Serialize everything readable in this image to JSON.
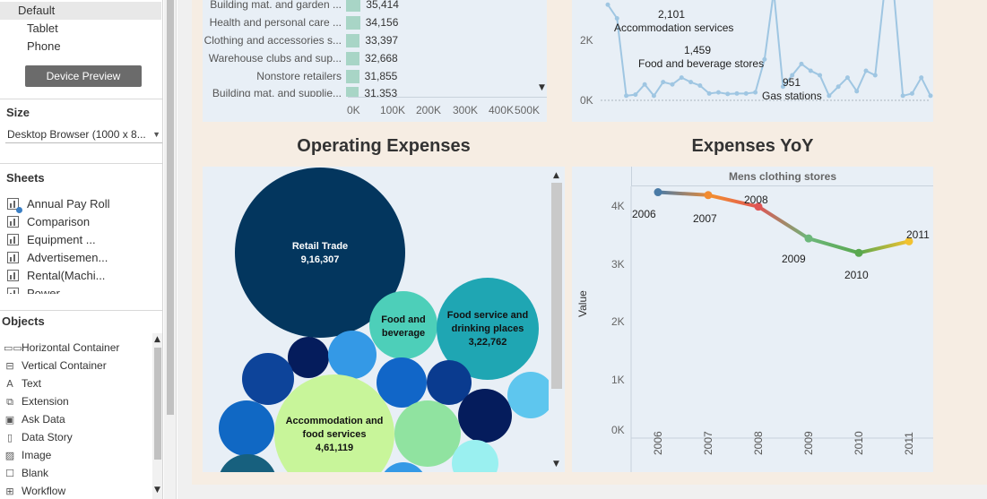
{
  "device": {
    "items": [
      "Default",
      "Tablet",
      "Phone"
    ],
    "preview_button": "Device Preview"
  },
  "size": {
    "title": "Size",
    "value": "Desktop Browser (1000 x 8..."
  },
  "sheets": {
    "title": "Sheets",
    "items": [
      "Annual Pay Roll",
      "Comparison",
      "Equipment ...",
      "Advertisemen...",
      "Rental(Machi...",
      "Power"
    ]
  },
  "objects": {
    "title": "Objects",
    "items": [
      {
        "label": "Horizontal Container",
        "icon": "horizontal-container-icon"
      },
      {
        "label": "Vertical Container",
        "icon": "vertical-container-icon"
      },
      {
        "label": "Text",
        "icon": "text-icon"
      },
      {
        "label": "Extension",
        "icon": "extension-icon"
      },
      {
        "label": "Ask Data",
        "icon": "ask-data-icon"
      },
      {
        "label": "Data Story",
        "icon": "data-story-icon"
      },
      {
        "label": "Image",
        "icon": "image-icon"
      },
      {
        "label": "Blank",
        "icon": "blank-icon"
      },
      {
        "label": "Workflow",
        "icon": "workflow-icon"
      }
    ]
  },
  "colors": {
    "canvas": "#f6ede3",
    "pane": "#e8eff6",
    "bar": "#a8d5c6",
    "line_points": "#9fc6e2"
  },
  "chart_data": [
    {
      "type": "bar",
      "orientation": "horizontal",
      "categories": [
        "Building mat. and garden ...",
        "Health and personal care ...",
        "Clothing and accessories s...",
        "Warehouse clubs and sup...",
        "Nonstore retailers",
        "Building mat. and supplie..."
      ],
      "values": [
        35414,
        34156,
        33397,
        32668,
        31855,
        31353
      ],
      "value_labels": [
        "35,414",
        "34,156",
        "33,397",
        "32,668",
        "31,855",
        "31,353"
      ],
      "x_ticks": [
        "0K",
        "100K",
        "200K",
        "300K",
        "400K",
        "500K"
      ],
      "xlim": [
        0,
        500000
      ]
    },
    {
      "type": "line",
      "y_ticks": [
        "0K",
        "2K"
      ],
      "ylim": [
        0,
        4800
      ],
      "values": [
        4200,
        3600,
        200,
        250,
        700,
        200,
        800,
        700,
        1000,
        800,
        650,
        300,
        350,
        280,
        300,
        300,
        350,
        1800,
        4800,
        600,
        1100,
        1600,
        1300,
        1100,
        200,
        600,
        1000,
        400,
        1300,
        1100,
        4800,
        4800,
        200,
        300,
        1000,
        200
      ],
      "annotations": [
        {
          "value": "2,101",
          "label": "Accommodation services"
        },
        {
          "value": "1,459",
          "label": "Food and beverage stores"
        },
        {
          "value": "951",
          "label": "Gas stations"
        }
      ]
    },
    {
      "type": "bubble",
      "title": "Operating Expenses",
      "bubbles": [
        {
          "label": "Retail Trade",
          "value_label": "9,16,307",
          "color": "#03365e"
        },
        {
          "label": "Food and beverage",
          "value_label": "",
          "color": "#4dcfb9"
        },
        {
          "label": "Food service and drinking places",
          "value_label": "3,22,762",
          "color": "#1fa6b3"
        },
        {
          "label": "Accommodation and food services",
          "value_label": "4,61,119",
          "color": "#c8f59a"
        }
      ]
    },
    {
      "type": "line",
      "title": "Expenses YoY",
      "panel_header": "Mens clothing stores",
      "ylabel": "Value",
      "y_ticks": [
        "0K",
        "1K",
        "2K",
        "3K",
        "4K"
      ],
      "ylim": [
        0,
        4200
      ],
      "categories": [
        "2006",
        "2007",
        "2008",
        "2009",
        "2010",
        "2011"
      ],
      "values": [
        4100,
        4050,
        3850,
        3300,
        3050,
        3250
      ],
      "point_colors": [
        "#4a7ba6",
        "#f28b30",
        "#e05555",
        "#6cb77a",
        "#5aa84f",
        "#f2c230"
      ]
    }
  ]
}
